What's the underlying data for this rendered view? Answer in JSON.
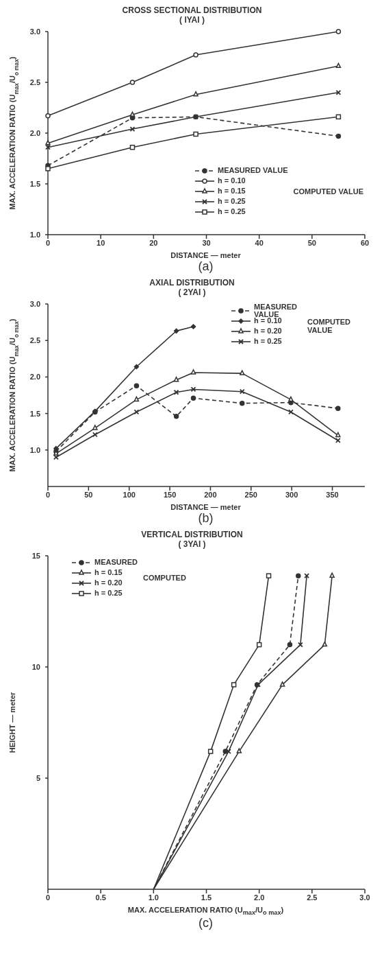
{
  "chart_data": [
    {
      "type": "line",
      "title": "CROSS SECTIONAL DISTRIBUTION",
      "subtitle": "( IYAI )",
      "xlabel": "DISTANCE — meter",
      "ylabel": "MAX. ACCELERATION RATIO (U$_{max}$/U$_{o max}$)",
      "x": [
        0,
        16,
        28,
        55
      ],
      "xlim": [
        0,
        60
      ],
      "xticks": [
        0,
        10,
        20,
        30,
        40,
        50,
        60
      ],
      "ylim": [
        1,
        3
      ],
      "yticks": [
        {
          "value": 1,
          "label": "1.0"
        },
        1.5,
        {
          "value": 2,
          "label": "2.0"
        },
        2.5,
        {
          "value": 3,
          "label": "3.0"
        }
      ],
      "legend": "bottom right",
      "grid": false,
      "series": [
        {
          "name": "MEASURED VALUE",
          "color": "#333333",
          "marker": "circle",
          "line_style": "dashed",
          "values": [
            1.68,
            2.15,
            2.16,
            1.97
          ]
        },
        {
          "name": "h = 0.10",
          "color": "#333333",
          "marker": "circle",
          "line_style": "solid",
          "values": [
            2.17,
            2.5,
            2.77,
            3.0
          ]
        },
        {
          "name": "h = 0.15",
          "color": "#333333",
          "marker": "triangle",
          "line_style": "solid",
          "values": [
            1.9,
            2.18,
            2.38,
            2.66
          ]
        },
        {
          "name": "h = 0.25",
          "color": "#333333",
          "marker": "cross",
          "line_style": "solid",
          "values": [
            1.86,
            2.04,
            2.16,
            2.4
          ]
        },
        {
          "name": "h = 0.25",
          "color": "#333333",
          "marker": "square",
          "line_style": "solid",
          "values": [
            1.65,
            1.86,
            1.99,
            2.16
          ]
        }
      ],
      "annotations": [
        "COMPUTED VALUE",
        "(a)"
      ]
    },
    {
      "type": "line",
      "title": "AXIAL DISTRIBUTION",
      "subtitle": "( 2YAI )",
      "xlabel": "DISTANCE — meter",
      "ylabel": "MAX. ACCELERATION RATIO (U$_{max}$/U$_{o max}$)",
      "x": [
        10,
        58,
        109,
        158,
        179,
        239,
        299,
        357
      ],
      "xlim": [
        0,
        390
      ],
      "xticks": [
        0,
        50,
        100,
        150,
        200,
        250,
        300,
        350
      ],
      "ylim": [
        0.5,
        3
      ],
      "yticks": [
        {
          "value": 1,
          "label": "1.0"
        },
        1.5,
        {
          "value": 2,
          "label": "2.0"
        },
        2.5,
        {
          "value": 3,
          "label": "3.0"
        }
      ],
      "legend": "top right",
      "grid": false,
      "series": [
        {
          "name": "MEASURED VALUE",
          "color": "#333333",
          "marker": "circle",
          "line_style": "dashed",
          "values": [
            0.98,
            1.52,
            1.88,
            1.46,
            1.71,
            1.64,
            1.65,
            1.57
          ]
        },
        {
          "name": "h = 0.10",
          "color": "#333333",
          "marker": "diamond",
          "line_style": "solid",
          "values": [
            1.02,
            1.53,
            2.14,
            2.63,
            2.69,
            null,
            null,
            null
          ]
        },
        {
          "name": "h = 0.20",
          "color": "#333333",
          "marker": "triangle",
          "line_style": "solid",
          "values": [
            0.95,
            1.3,
            1.69,
            1.96,
            2.06,
            2.05,
            1.69,
            1.2
          ]
        },
        {
          "name": "h = 0.25",
          "color": "#333333",
          "marker": "cross",
          "line_style": "solid",
          "values": [
            0.9,
            1.21,
            1.52,
            1.79,
            1.83,
            1.8,
            1.52,
            1.13
          ]
        }
      ],
      "annotations": [
        "COMPUTED VALUE",
        "(b)"
      ]
    },
    {
      "type": "line",
      "title": "VERTICAL DISTRIBUTION",
      "subtitle": "( 3YAI )",
      "xlabel": "MAX. ACCELERATION RATIO (U$_{max}$/U$_{o max}$)",
      "ylabel": "HEIGHT — meter",
      "xlim": [
        0,
        3
      ],
      "xticks": [
        0,
        0.5,
        {
          "value": 1,
          "label": "1.0"
        },
        1.5,
        {
          "value": 2,
          "label": "2.0"
        },
        2.5,
        {
          "value": 3,
          "label": "3.0"
        }
      ],
      "ylim": [
        0,
        15
      ],
      "yticks": [
        5,
        10,
        15
      ],
      "legend": "top left",
      "grid": false,
      "series": [
        {
          "name": "MEASURED",
          "color": "#333333",
          "marker": "circle",
          "line_style": "dashed",
          "x": [
            1,
            1.68,
            1.98,
            2.29,
            2.37
          ],
          "values": [
            0,
            6.2,
            9.2,
            11,
            14.1
          ]
        },
        {
          "name": "h = 0.15",
          "color": "#333333",
          "marker": "triangle",
          "line_style": "solid",
          "x": [
            1,
            1.81,
            2.22,
            2.62,
            2.69
          ],
          "values": [
            0,
            6.2,
            9.2,
            11,
            14.1
          ]
        },
        {
          "name": "h = 0.20",
          "color": "#333333",
          "marker": "cross",
          "line_style": "solid",
          "x": [
            1,
            1.71,
            1.99,
            2.39,
            2.45
          ],
          "values": [
            0,
            6.2,
            9.2,
            11,
            14.1
          ]
        },
        {
          "name": "h = 0.25",
          "color": "#333333",
          "marker": "square",
          "line_style": "solid",
          "x": [
            1,
            1.54,
            1.76,
            2.0,
            2.09
          ],
          "values": [
            0,
            6.2,
            9.2,
            11,
            14.1
          ]
        }
      ],
      "annotations": [
        "COMPUTED",
        "(c)"
      ]
    }
  ]
}
